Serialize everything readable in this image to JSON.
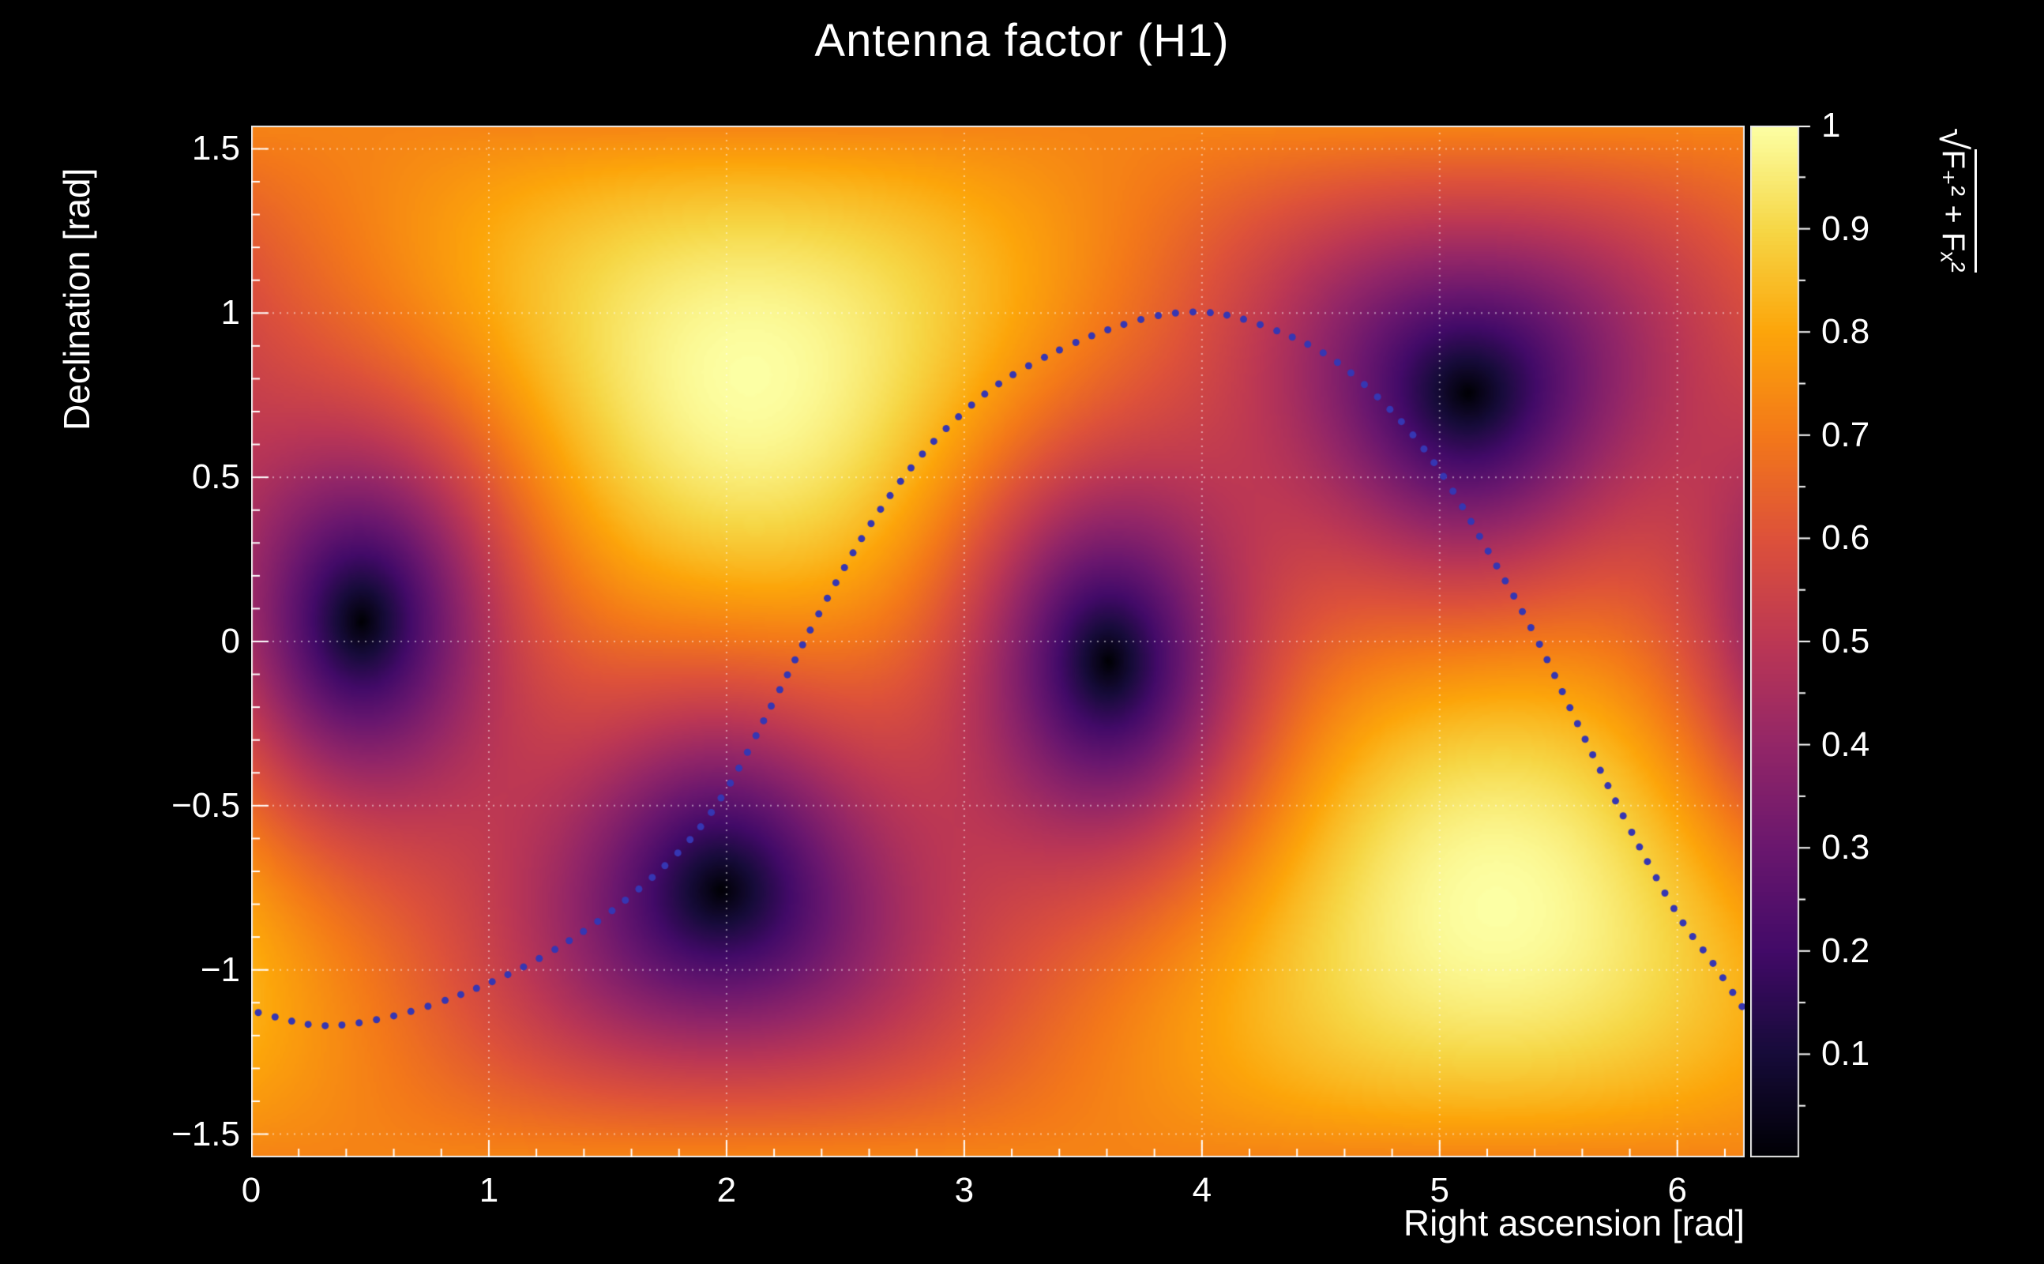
{
  "title": "Antenna factor (H1)",
  "colors": {
    "background": "#000000",
    "text": "#ffffff",
    "frame": "#e8e8e8",
    "grid": "#ffffff",
    "tick": "#ffffff",
    "trajectory": "#3636b2"
  },
  "chart_data": {
    "type": "heatmap",
    "title": "Antenna factor (H1)",
    "xlabel": "Right ascension [rad]",
    "ylabel": "Declination [rad]",
    "zlabel": "√(F₊² + Fₓ²)",
    "zlabel_radical": "√",
    "zlabel_expr": "F₊² + Fₓ²",
    "xlim": [
      0,
      6.2832
    ],
    "ylim": [
      -1.5708,
      1.5708
    ],
    "zlim": [
      0,
      1
    ],
    "x_ticks": [
      0,
      1,
      2,
      3,
      4,
      5,
      6
    ],
    "x_tick_labels": [
      "0",
      "1",
      "2",
      "3",
      "4",
      "5",
      "6"
    ],
    "x_minor_step": 0.2,
    "y_ticks": [
      -1.5,
      -1,
      -0.5,
      0,
      0.5,
      1,
      1.5
    ],
    "y_tick_labels": [
      "−1.5",
      "−1",
      "−0.5",
      "0",
      "0.5",
      "1",
      "1.5"
    ],
    "y_minor_step": 0.1,
    "z_ticks": [
      0.1,
      0.2,
      0.3,
      0.4,
      0.5,
      0.6,
      0.7,
      0.8,
      0.9,
      1
    ],
    "z_tick_labels": [
      "0.1",
      "0.2",
      "0.3",
      "0.4",
      "0.5",
      "0.6",
      "0.7",
      "0.8",
      "0.9",
      "1"
    ],
    "z_minor_step": 0.05,
    "grid": true,
    "value_function": {
      "description": "sqrt(Fplus^2 + Fcross^2) interferometer antenna pattern: v = sqrt(((1+c^2)/2)^2 cos^2(2phi) + c^2 sin^2(2phi)), c = cos(angle to detector zenith), phi = azimuth from arm bisector",
      "zenith_ra": 2.1,
      "zenith_dec": 0.81,
      "arm_azimuth": 0.874
    },
    "maxima": [
      [
        2.1,
        0.81
      ],
      [
        5.24,
        -0.81
      ]
    ],
    "nulls": [
      [
        0.52,
        0.12
      ],
      [
        2.0,
        -0.73
      ],
      [
        3.68,
        -0.1
      ],
      [
        5.17,
        0.76
      ]
    ],
    "colormap": {
      "name": "inferno",
      "stops": [
        [
          0.0,
          "#000004"
        ],
        [
          0.1,
          "#160b39"
        ],
        [
          0.2,
          "#420a68"
        ],
        [
          0.3,
          "#6a176e"
        ],
        [
          0.4,
          "#932667"
        ],
        [
          0.5,
          "#bc3754"
        ],
        [
          0.6,
          "#dd513a"
        ],
        [
          0.7,
          "#f37819"
        ],
        [
          0.8,
          "#fca50a"
        ],
        [
          0.9,
          "#f6d746"
        ],
        [
          1.0,
          "#fcffa4"
        ]
      ]
    },
    "trajectory": {
      "style": "dotted",
      "color": "#3636b2",
      "dot_radius_px": 4.5,
      "dot_spacing_px": 21,
      "points": [
        [
          0.03,
          -1.13
        ],
        [
          0.3,
          -1.17
        ],
        [
          0.6,
          -1.14
        ],
        [
          0.9,
          -1.07
        ],
        [
          1.2,
          -0.97
        ],
        [
          1.5,
          -0.83
        ],
        [
          1.8,
          -0.64
        ],
        [
          2.0,
          -0.45
        ],
        [
          2.2,
          -0.18
        ],
        [
          2.4,
          0.1
        ],
        [
          2.6,
          0.35
        ],
        [
          2.8,
          0.55
        ],
        [
          3.0,
          0.7
        ],
        [
          3.2,
          0.81
        ],
        [
          3.5,
          0.92
        ],
        [
          3.8,
          0.99
        ],
        [
          4.05,
          1.0
        ],
        [
          4.3,
          0.95
        ],
        [
          4.55,
          0.86
        ],
        [
          4.8,
          0.7
        ],
        [
          5.0,
          0.52
        ],
        [
          5.2,
          0.28
        ],
        [
          5.4,
          0.02
        ],
        [
          5.6,
          -0.28
        ],
        [
          5.8,
          -0.57
        ],
        [
          6.0,
          -0.83
        ],
        [
          6.15,
          -0.98
        ],
        [
          6.28,
          -1.12
        ]
      ]
    }
  }
}
